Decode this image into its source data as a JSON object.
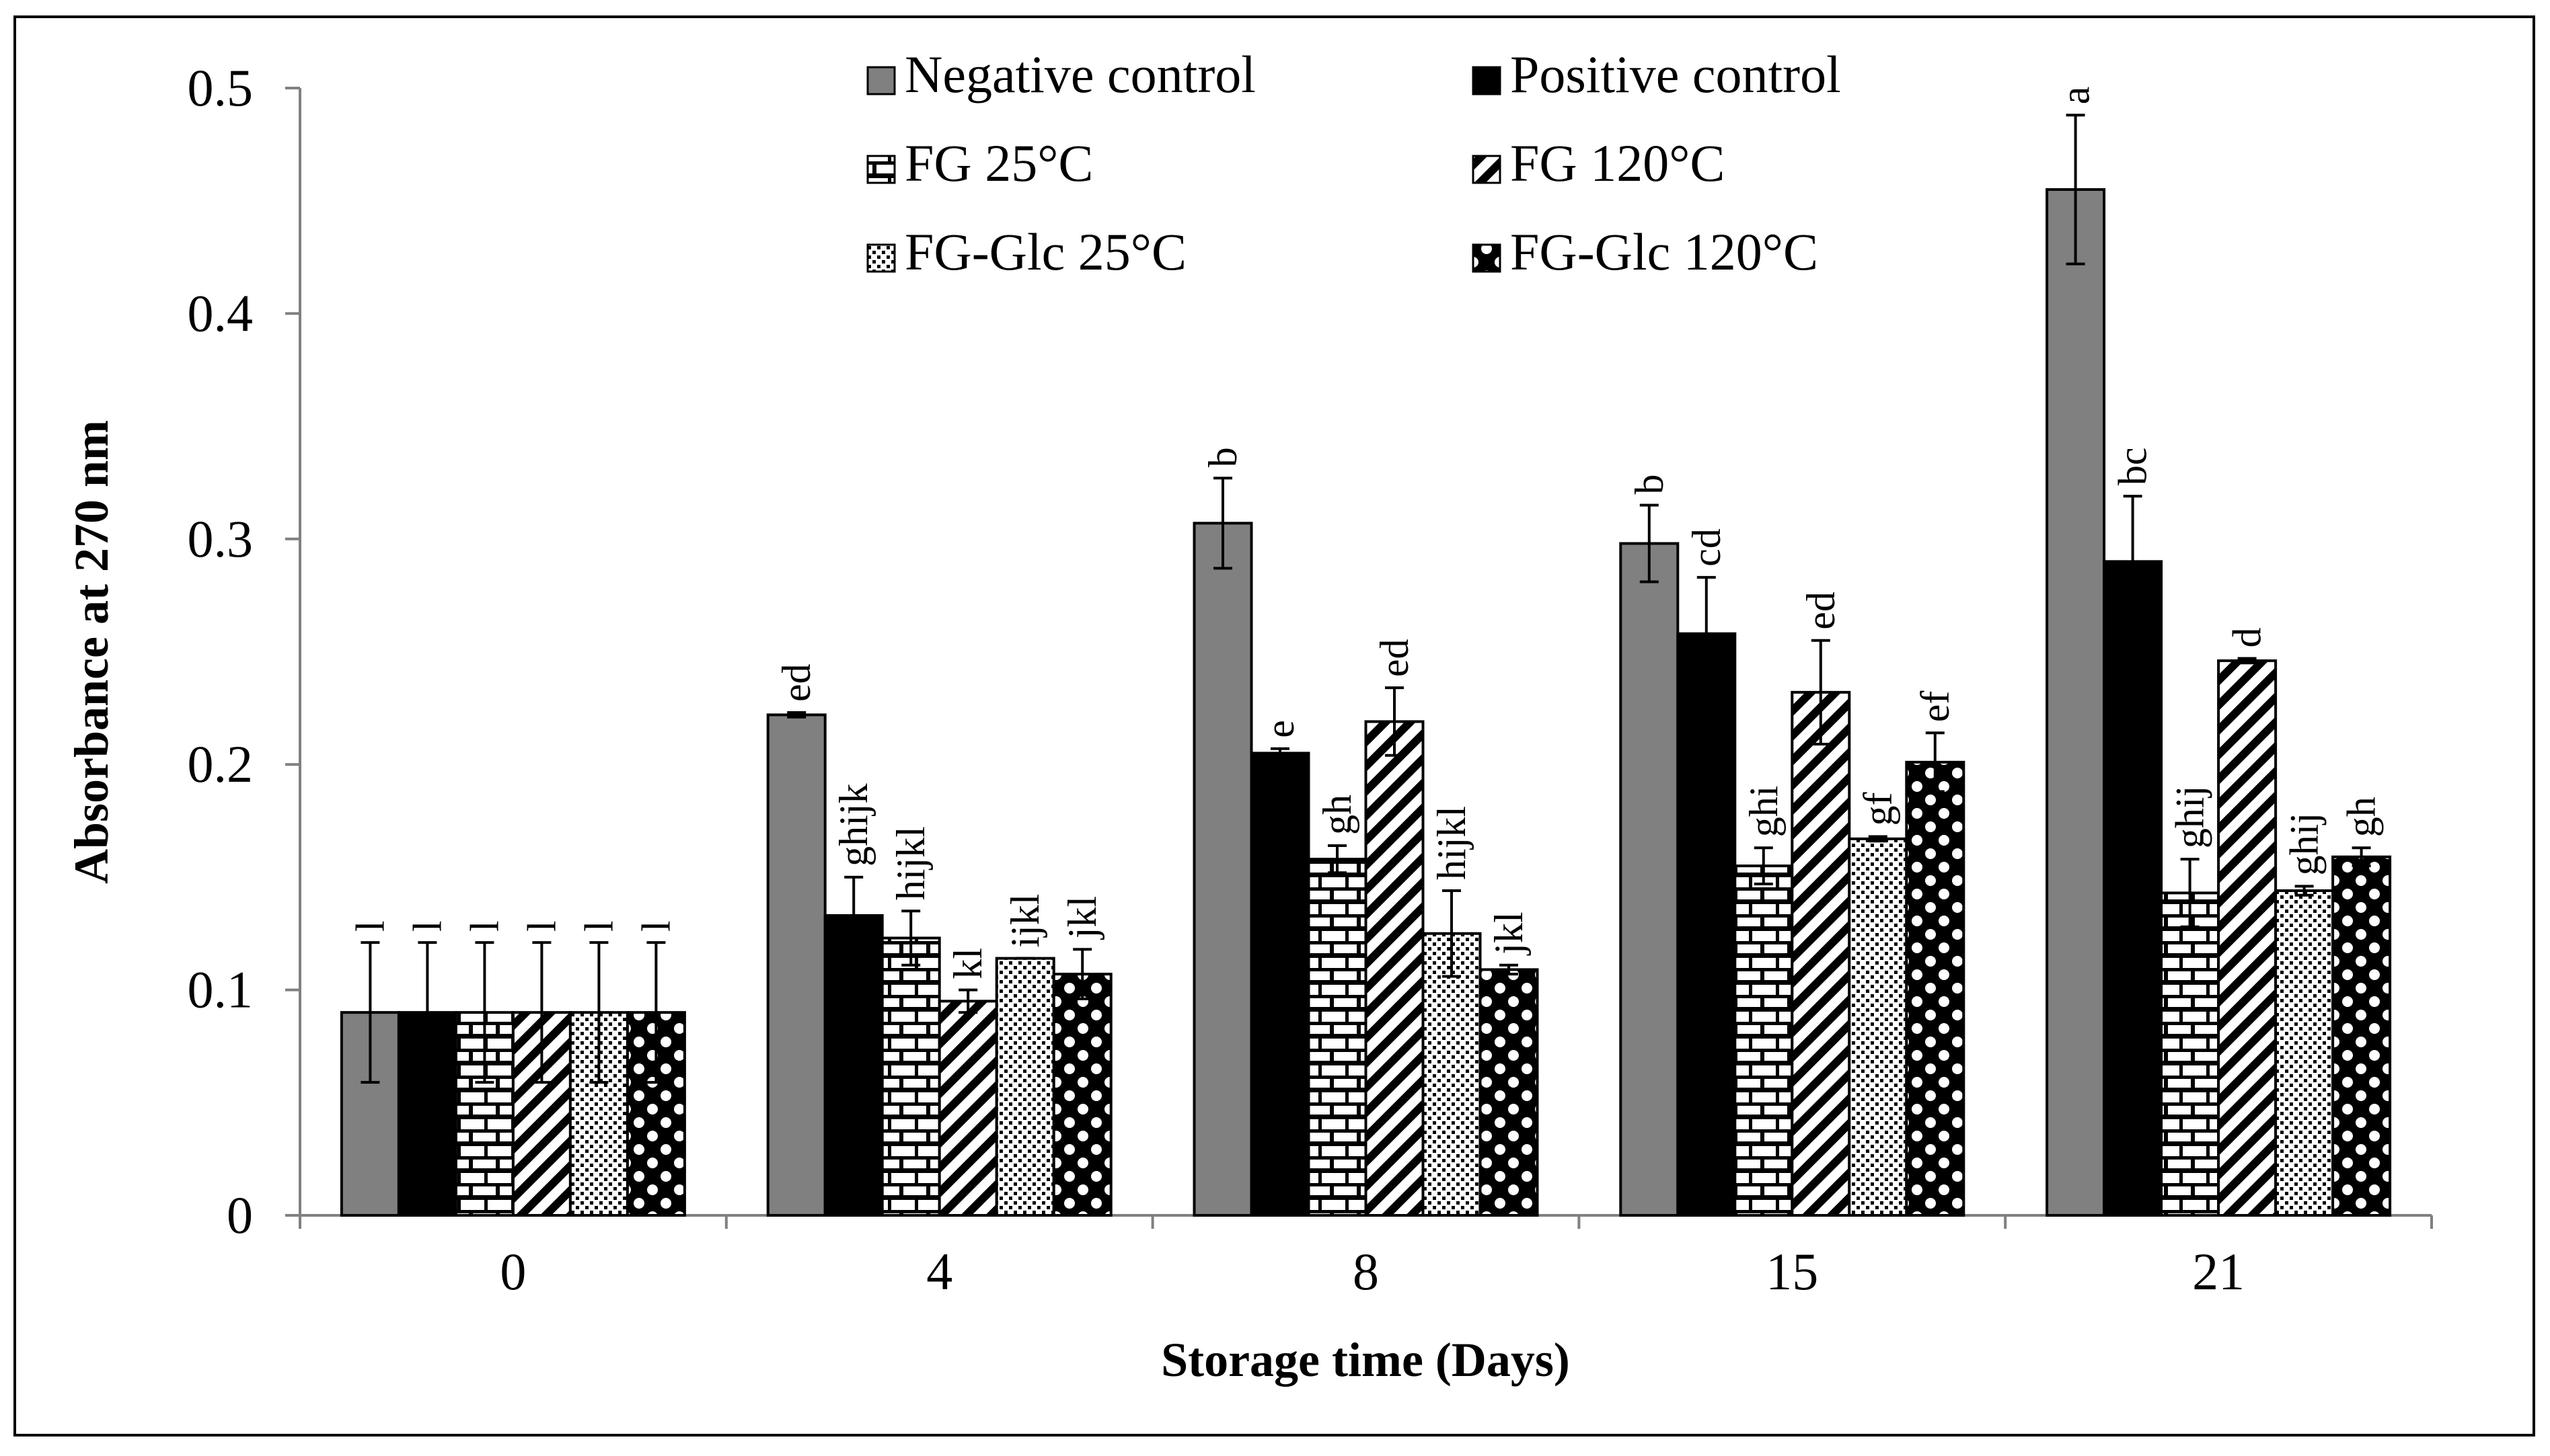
{
  "chart_data": {
    "type": "bar",
    "title": "",
    "xlabel": "Storage time (Days)",
    "ylabel": "Absorbance at 270 nm",
    "ylim": [
      0,
      0.5
    ],
    "yticks": [
      0,
      0.1,
      0.2,
      0.3,
      0.4,
      0.5
    ],
    "ytick_labels": [
      "0",
      "0.1",
      "0.2",
      "0.3",
      "0.4",
      "0.5"
    ],
    "grid": false,
    "legend_position": "top",
    "categories": [
      "0",
      "4",
      "8",
      "15",
      "21"
    ],
    "series": [
      {
        "name": "Negative control",
        "pattern": "gray",
        "values": [
          0.09,
          0.222,
          0.307,
          0.298,
          0.455
        ],
        "errors": [
          0.031,
          0.001,
          0.02,
          0.017,
          0.033
        ],
        "labels": [
          "l",
          "ed",
          "b",
          "b",
          "a"
        ]
      },
      {
        "name": "Positive control",
        "pattern": "black",
        "values": [
          0.09,
          0.133,
          0.205,
          0.258,
          0.29
        ],
        "errors": [
          0.031,
          0.017,
          0.002,
          0.025,
          0.029
        ],
        "labels": [
          "l",
          "ghijk",
          "e",
          "cd",
          "bc"
        ]
      },
      {
        "name": "FG 25°C",
        "pattern": "bricks",
        "values": [
          0.09,
          0.123,
          0.158,
          0.155,
          0.143
        ],
        "errors": [
          0.031,
          0.012,
          0.006,
          0.008,
          0.015
        ],
        "labels": [
          "l",
          "hijkl",
          "gh",
          "ghi",
          "ghij"
        ]
      },
      {
        "name": "FG 120°C",
        "pattern": "diagonal",
        "values": [
          0.09,
          0.095,
          0.219,
          0.232,
          0.246
        ],
        "errors": [
          0.031,
          0.005,
          0.015,
          0.023,
          0.001
        ],
        "labels": [
          "l",
          "kl",
          "ed",
          "ed",
          "d"
        ]
      },
      {
        "name": "FG-Glc 25°C",
        "pattern": "dots",
        "values": [
          0.09,
          0.114,
          0.125,
          0.167,
          0.144
        ],
        "errors": [
          0.031,
          0.0,
          0.019,
          0.001,
          0.002
        ],
        "labels": [
          "l",
          "ijkl",
          "hijkl",
          "gf",
          "ghij"
        ]
      },
      {
        "name": "FG-Glc 120°C",
        "pattern": "checker",
        "values": [
          0.09,
          0.107,
          0.109,
          0.201,
          0.159
        ],
        "errors": [
          0.031,
          0.011,
          0.002,
          0.013,
          0.004
        ],
        "labels": [
          "l",
          "jkl",
          "jkl",
          "ef",
          "gh"
        ]
      }
    ]
  }
}
